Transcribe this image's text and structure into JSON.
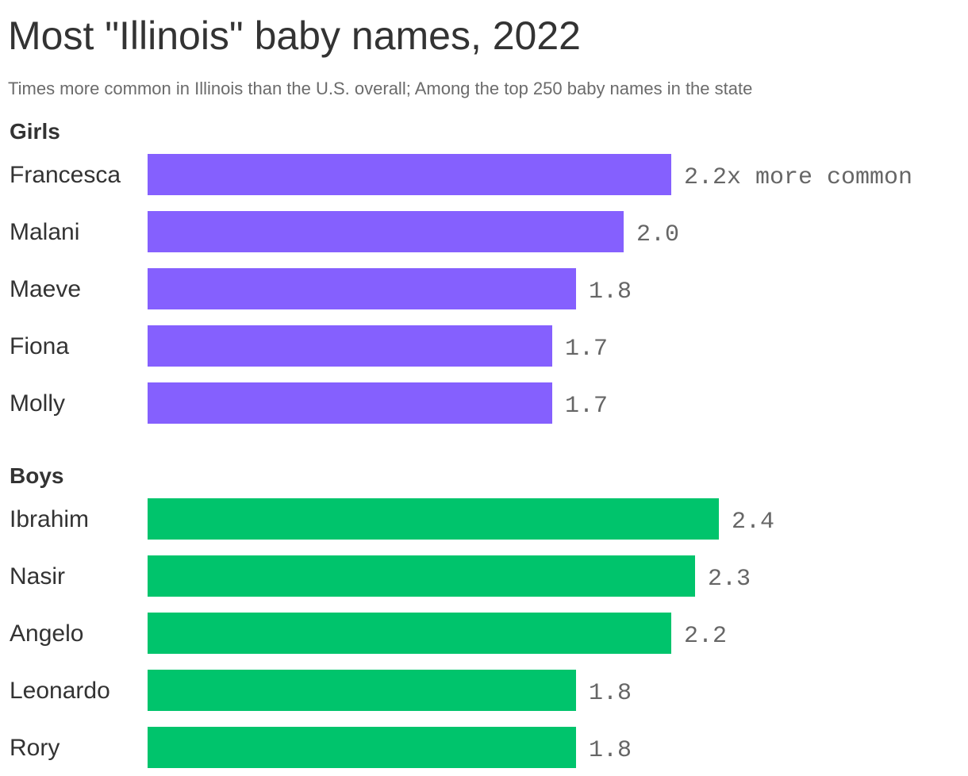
{
  "chart_data": {
    "type": "bar",
    "orientation": "horizontal",
    "title": "Most \"Illinois\" baby names, 2022",
    "subtitle": "Times more common in Illinois than the U.S. overall; Among the top 250 baby names in the state",
    "groups": [
      {
        "name": "Girls",
        "color": "#8560fe",
        "categories": [
          "Francesca",
          "Malani",
          "Maeve",
          "Fiona",
          "Molly"
        ],
        "values": [
          2.2,
          2.0,
          1.8,
          1.7,
          1.7
        ],
        "labels": [
          "2.2x more common",
          "2.0",
          "1.8",
          "1.7",
          "1.7"
        ]
      },
      {
        "name": "Boys",
        "color": "#00c46c",
        "categories": [
          "Ibrahim",
          "Nasir",
          "Angelo",
          "Leonardo",
          "Rory"
        ],
        "values": [
          2.4,
          2.3,
          2.2,
          1.8,
          1.8
        ],
        "labels": [
          "2.4",
          "2.3",
          "2.2",
          "1.8",
          "1.8"
        ]
      }
    ]
  }
}
